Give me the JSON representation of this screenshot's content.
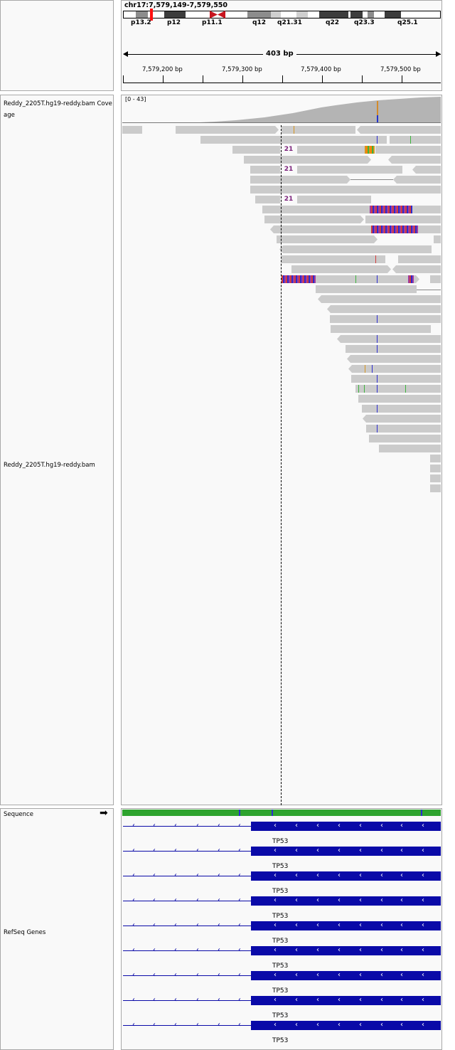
{
  "locus": "chr17:7,579,149-7,579,550",
  "ideogram_bands": [
    "p13.2",
    "p12",
    "p11.1",
    "q12",
    "q21.31",
    "q22",
    "q23.3",
    "q25.1"
  ],
  "ruler": {
    "span": "403 bp",
    "ticks": [
      "7,579,200 bp",
      "7,579,300 bp",
      "7,579,400 bp",
      "7,579,500 bp"
    ]
  },
  "tracks": {
    "coverage_label": "Reddy_2205T.hg19-reddy.bam Coverage",
    "coverage_range": "[0 - 43]",
    "alignment_label": "Reddy_2205T.hg19-reddy.bam",
    "sequence_label": "Sequence",
    "refseq_label": "RefSeq Genes"
  },
  "insertion_label": "21",
  "genes": [
    "TP53",
    "TP53",
    "TP53",
    "TP53",
    "TP53",
    "TP53",
    "TP53",
    "TP53",
    "TP53"
  ],
  "icons": {
    "sequence_strand": "right-arrow-icon",
    "gene_strand": "left-chevron-icon"
  },
  "colors": {
    "gene": "#0a0aa8",
    "read": "#cbcbcb",
    "coverage": "#b4b4b4",
    "insertion": "#7a1f7a"
  }
}
